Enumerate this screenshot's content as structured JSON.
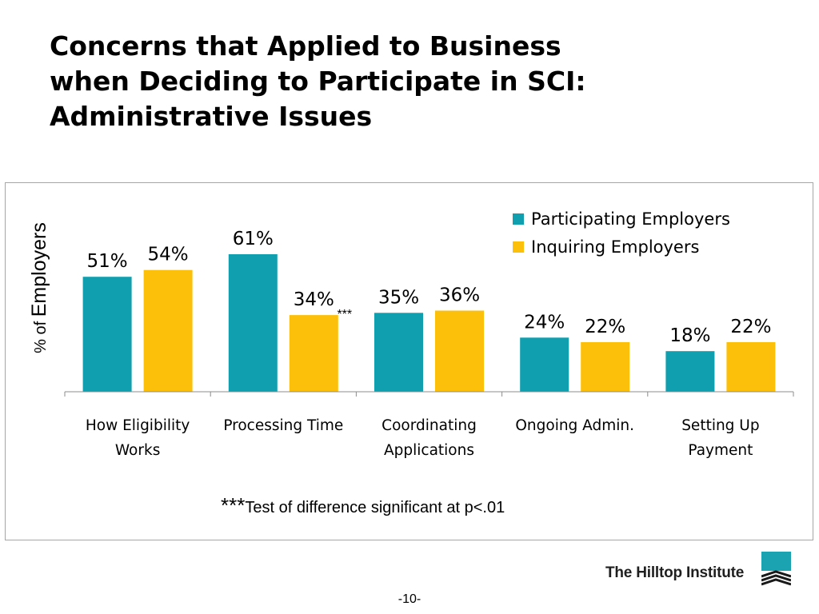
{
  "slide": {
    "title": "Concerns that Applied to Business\nwhen Deciding to Participate in SCI:\nAdministrative Issues",
    "footnote_stars": "***",
    "footnote_text": "Test of difference significant at p<.01",
    "logo_text": "The Hilltop Institute",
    "page_number": "-10-"
  },
  "chart_data": {
    "type": "bar",
    "title": "",
    "xlabel": "",
    "ylabel_prefix": "% of",
    "ylabel_main": "Employers",
    "categories": [
      [
        "How Eligibility",
        "Works"
      ],
      [
        "Processing Time"
      ],
      [
        "Coordinating",
        "Applications"
      ],
      [
        "Ongoing Admin."
      ],
      [
        "Setting Up",
        "Payment"
      ]
    ],
    "series": [
      {
        "name": "Participating Employers",
        "color": "#0f9fae",
        "values": [
          51,
          61,
          35,
          24,
          18
        ],
        "labels": [
          "51%",
          "61%",
          "35%",
          "24%",
          "18%"
        ]
      },
      {
        "name": "Inquiring Employers",
        "color": "#fdc00a",
        "values": [
          54,
          34,
          36,
          22,
          22
        ],
        "labels": [
          "54%",
          "34%",
          "36%",
          "22%",
          "22%"
        ]
      }
    ],
    "significance": [
      {
        "category_index": 1,
        "series_index": 1,
        "marker": "***"
      }
    ],
    "ylim": [
      0,
      75
    ],
    "grid": false,
    "legend_position": "top-right"
  }
}
